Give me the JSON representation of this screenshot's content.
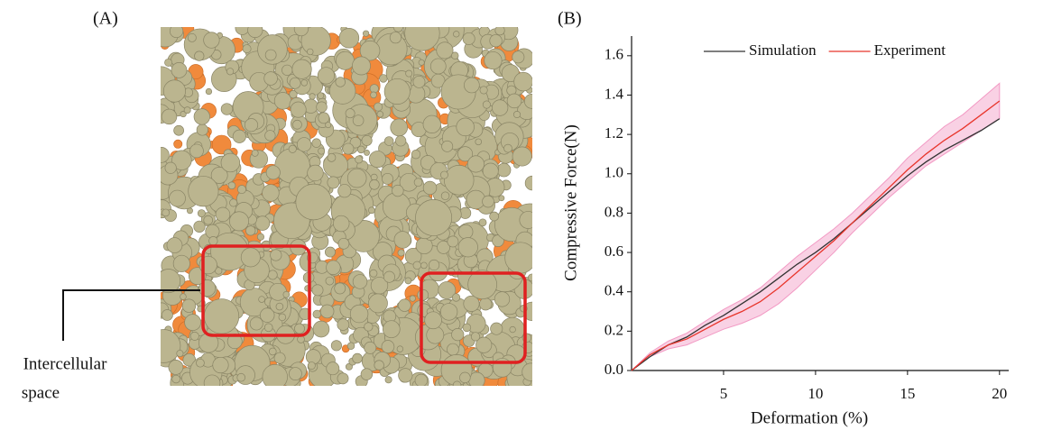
{
  "panel_a": {
    "label": "(A)",
    "annotation": [
      "Intercellular",
      "space"
    ]
  },
  "chart_data": {
    "type": "line",
    "label": "(B)",
    "x_label": "Deformation (%)",
    "y_label": "Compressive Force(N)",
    "x": [
      0,
      1,
      2,
      3,
      4,
      5,
      6,
      7,
      8,
      9,
      10,
      11,
      12,
      13,
      14,
      15,
      16,
      17,
      18,
      19,
      20
    ],
    "series": [
      {
        "name": "Simulation",
        "color": "#333333",
        "values": [
          0.0,
          0.07,
          0.13,
          0.17,
          0.23,
          0.28,
          0.34,
          0.4,
          0.47,
          0.54,
          0.6,
          0.67,
          0.75,
          0.83,
          0.91,
          0.99,
          1.06,
          1.12,
          1.17,
          1.22,
          1.28
        ]
      },
      {
        "name": "Experiment",
        "color": "#e8352b",
        "values": [
          0.0,
          0.08,
          0.13,
          0.16,
          0.21,
          0.26,
          0.3,
          0.35,
          0.42,
          0.5,
          0.58,
          0.66,
          0.75,
          0.84,
          0.93,
          1.02,
          1.1,
          1.17,
          1.23,
          1.3,
          1.37
        ],
        "lower": [
          0.0,
          0.07,
          0.11,
          0.13,
          0.17,
          0.21,
          0.24,
          0.28,
          0.34,
          0.42,
          0.51,
          0.6,
          0.7,
          0.79,
          0.88,
          0.96,
          1.04,
          1.1,
          1.16,
          1.22,
          1.28
        ],
        "upper": [
          0.0,
          0.09,
          0.15,
          0.19,
          0.25,
          0.31,
          0.36,
          0.42,
          0.5,
          0.58,
          0.65,
          0.72,
          0.8,
          0.89,
          0.98,
          1.08,
          1.16,
          1.24,
          1.3,
          1.38,
          1.46
        ],
        "band_color": "#f29ac4"
      }
    ],
    "xlim": [
      0,
      20.5
    ],
    "ylim": [
      0,
      1.7
    ],
    "xticks": [
      5,
      10,
      15,
      20
    ],
    "yticks": [
      {
        "value": 0,
        "label": "0.0"
      },
      0.2,
      0.4,
      0.6,
      0.8,
      {
        "value": 1,
        "label": "1.0"
      },
      1.2,
      1.4,
      1.6
    ],
    "legend": "top-right"
  }
}
